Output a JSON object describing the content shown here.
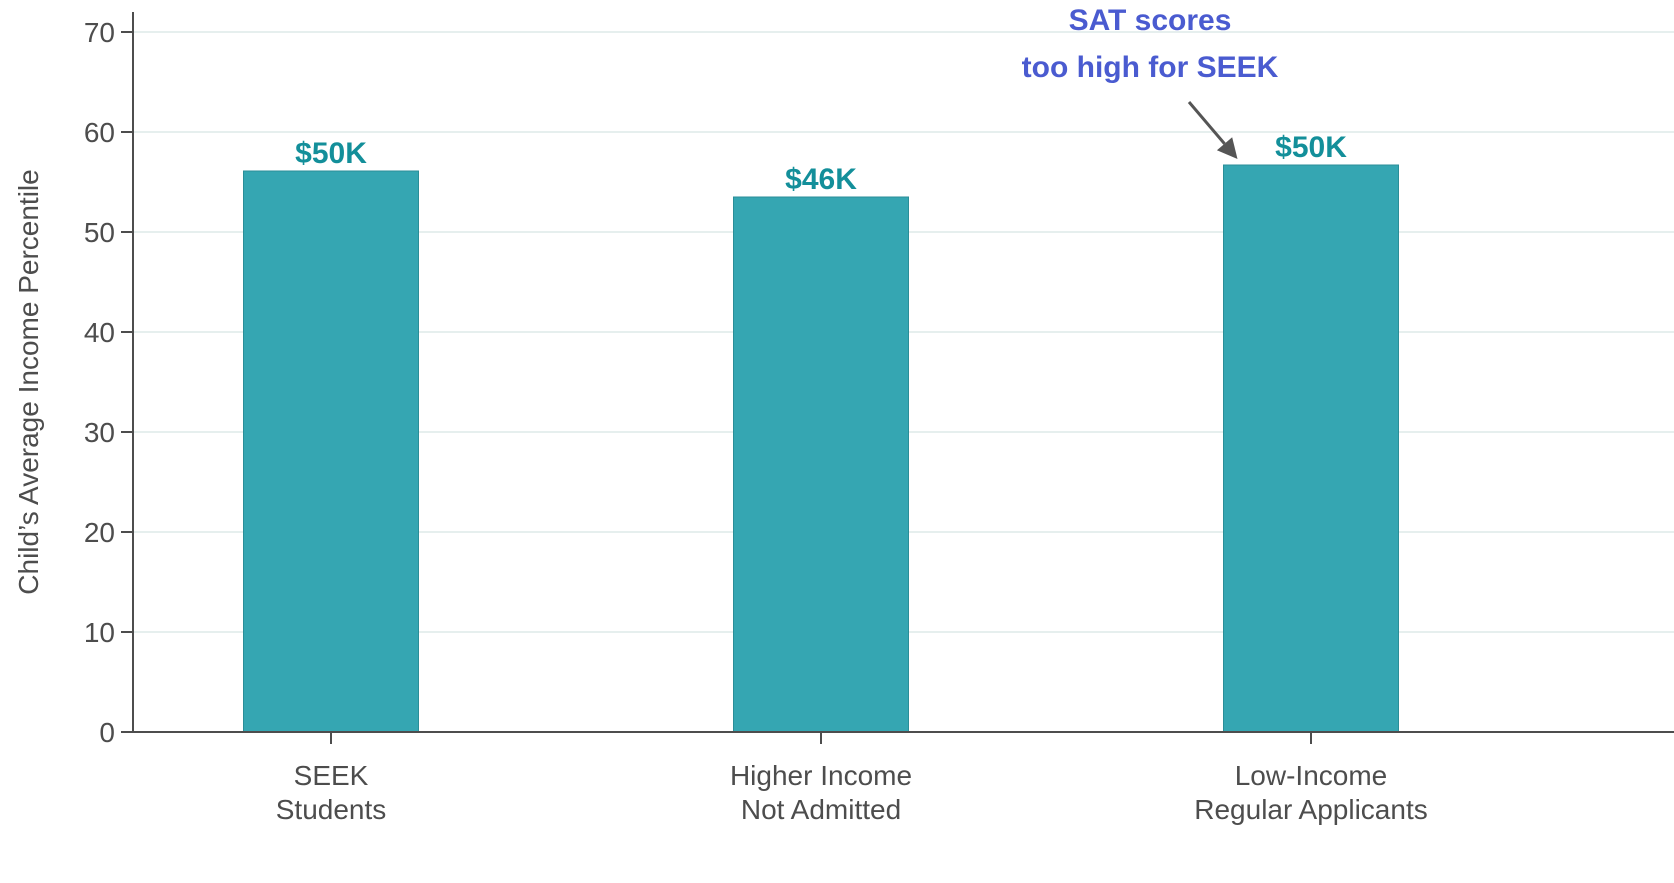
{
  "chart_data": {
    "type": "bar",
    "categories": [
      [
        "SEEK",
        "Students"
      ],
      [
        "Higher Income",
        "Not Admitted"
      ],
      [
        "Low-Income",
        "Regular Applicants"
      ]
    ],
    "values": [
      56.1,
      53.5,
      56.7
    ],
    "data_labels": [
      "$50K",
      "$46K",
      "$50K"
    ],
    "title": "",
    "xlabel": "",
    "ylabel": "Child’s Average Income Percentile",
    "ylim": [
      0,
      70
    ],
    "yticks": [
      0,
      10,
      20,
      30,
      40,
      50,
      60,
      70
    ],
    "grid": true,
    "annotation": {
      "lines": [
        "SAT scores",
        "too high for SEEK"
      ],
      "target_category_index": 2
    },
    "colors": {
      "bar": "#35a6b2",
      "bar_edge": "#2a8e98",
      "data_label": "#138f9a",
      "annotation": "#4a5bd0",
      "arrow": "#555555",
      "grid": "#e6efee",
      "axis": "#4d4d4d"
    }
  }
}
